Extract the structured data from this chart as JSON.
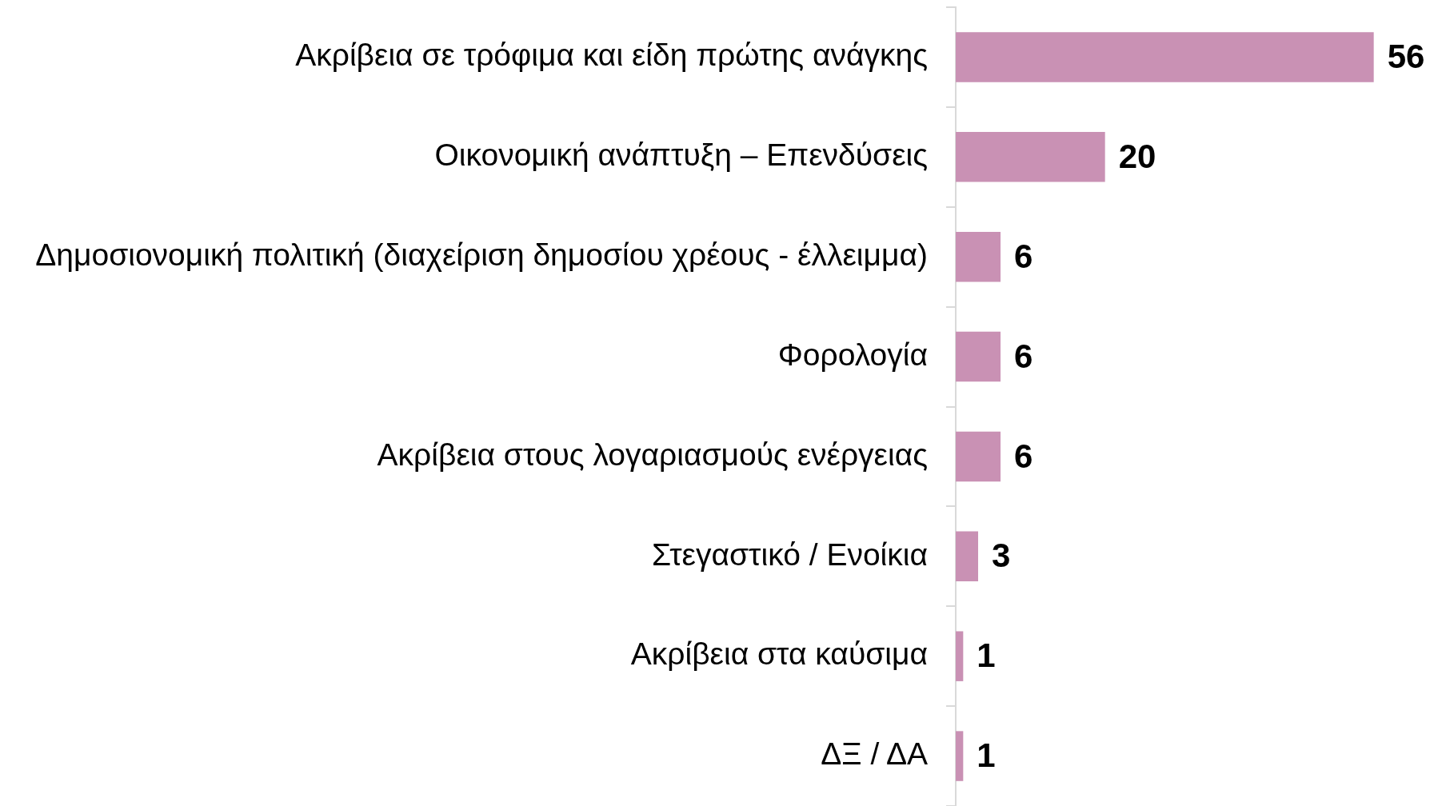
{
  "chart_data": {
    "type": "bar",
    "orientation": "horizontal",
    "categories": [
      "Ακρίβεια σε τρόφιμα και είδη πρώτης ανάγκης",
      "Οικονομική ανάπτυξη – Επενδύσεις",
      "Δημοσιονομική πολιτική (διαχείριση δημοσίου χρέους - έλλειμμα)",
      "Φορολογία",
      "Ακρίβεια στους λογαριασμούς ενέργειας",
      "Στεγαστικό / Ενοίκια",
      "Ακρίβεια στα καύσιμα",
      "ΔΞ / ΔΑ"
    ],
    "values": [
      56,
      20,
      6,
      6,
      6,
      3,
      1,
      1
    ],
    "color": "#c991b4",
    "data_labels": true,
    "tick_labels": "y",
    "legend": false
  }
}
